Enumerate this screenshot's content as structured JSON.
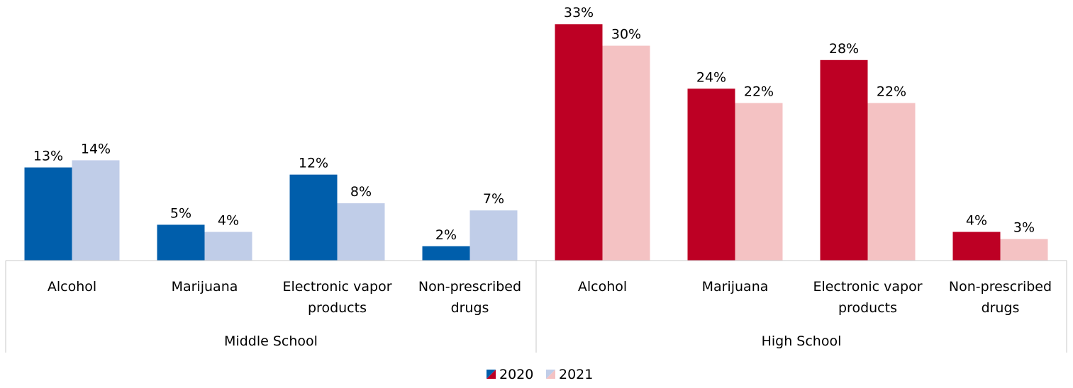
{
  "chart_data": {
    "type": "bar",
    "groups": [
      {
        "name": "Middle School",
        "categories": [
          [
            "Alcohol"
          ],
          [
            "Marijuana"
          ],
          [
            "Electronic vapor",
            "products"
          ],
          [
            "Non-prescribed",
            "drugs"
          ]
        ],
        "series": [
          {
            "name": "2020",
            "values": [
              13,
              5,
              12,
              2
            ],
            "labels": [
              "13%",
              "5%",
              "12%",
              "2%"
            ]
          },
          {
            "name": "2021",
            "values": [
              14,
              4,
              8,
              7
            ],
            "labels": [
              "14%",
              "4%",
              "8%",
              "7%"
            ]
          }
        ],
        "colors": {
          "2020": "#005eab",
          "2021": "#c0cde8"
        }
      },
      {
        "name": "High School",
        "categories": [
          [
            "Alcohol"
          ],
          [
            "Marijuana"
          ],
          [
            "Electronic vapor",
            "products"
          ],
          [
            "Non-prescribed",
            "drugs"
          ]
        ],
        "series": [
          {
            "name": "2020",
            "values": [
              33,
              24,
              28,
              4
            ],
            "labels": [
              "33%",
              "24%",
              "28%",
              "4%"
            ]
          },
          {
            "name": "2021",
            "values": [
              30,
              22,
              22,
              3
            ],
            "labels": [
              "30%",
              "22%",
              "22%",
              "3%"
            ]
          }
        ],
        "colors": {
          "2020": "#bd0024",
          "2021": "#f4c2c3"
        }
      }
    ],
    "legend": {
      "position": "bottom",
      "entries": [
        {
          "name": "2020",
          "colors": [
            "#bd0024",
            "#005eab"
          ]
        },
        {
          "name": "2021",
          "colors": [
            "#f4c2c3",
            "#c0cde8"
          ]
        }
      ]
    },
    "ylim": [
      0,
      35
    ],
    "grid": false
  }
}
